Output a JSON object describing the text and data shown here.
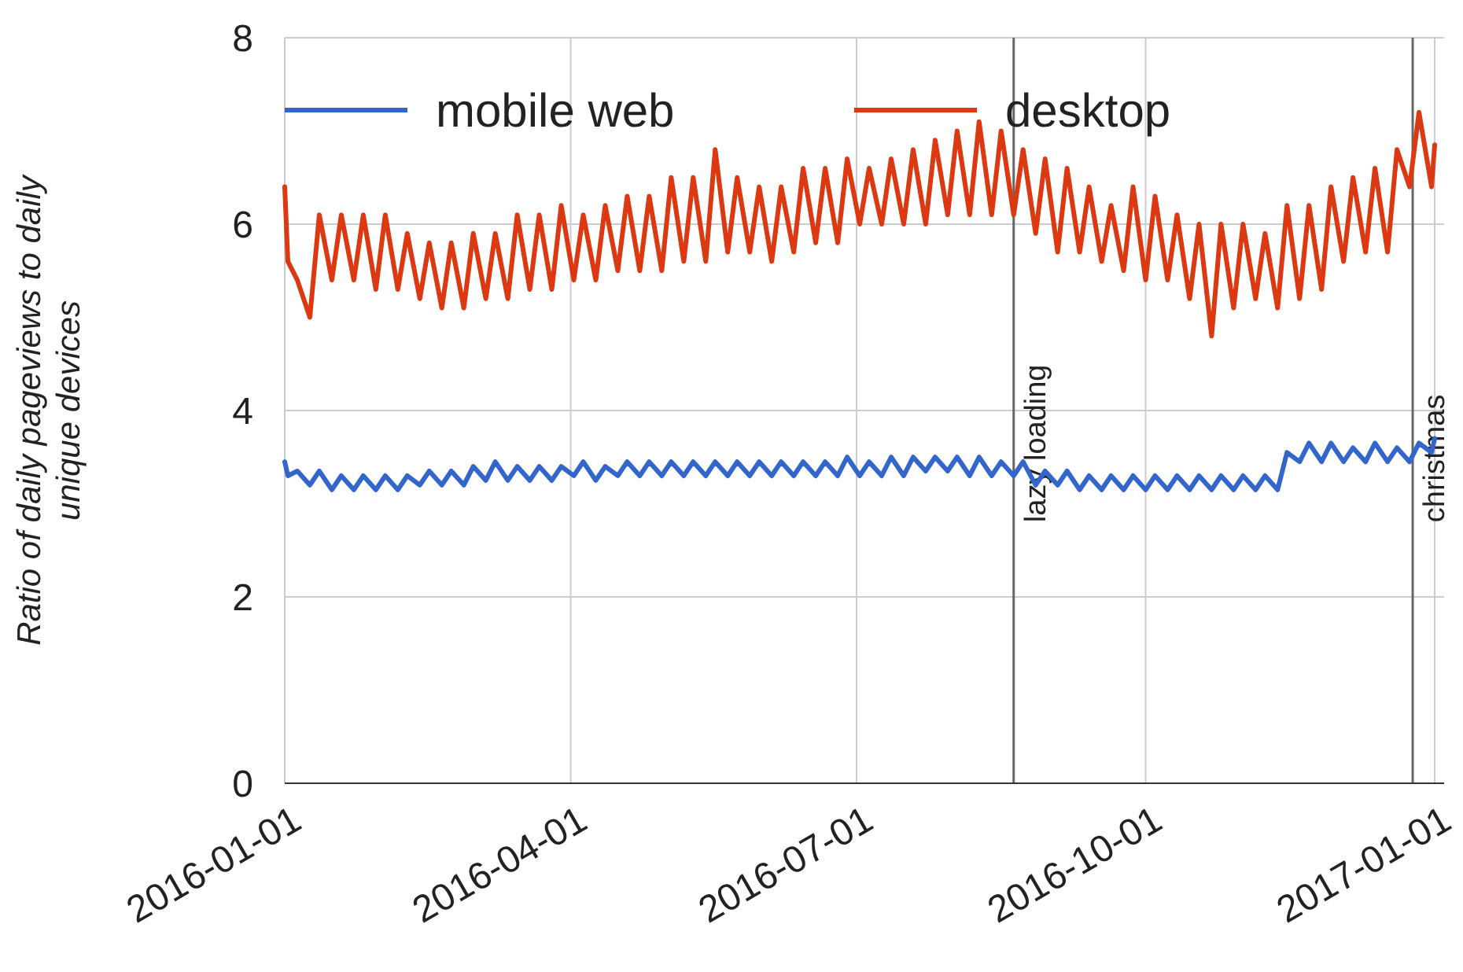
{
  "chart_data": {
    "type": "line",
    "ylabel": "Ratio of daily pageviews to daily unique devices",
    "x": [
      "2016-01-01",
      "2016-01-02",
      "2016-01-05",
      "2016-01-09",
      "2016-01-12",
      "2016-01-16",
      "2016-01-19",
      "2016-01-23",
      "2016-01-26",
      "2016-01-30",
      "2016-02-02",
      "2016-02-06",
      "2016-02-09",
      "2016-02-13",
      "2016-02-16",
      "2016-02-20",
      "2016-02-23",
      "2016-02-27",
      "2016-03-01",
      "2016-03-05",
      "2016-03-08",
      "2016-03-12",
      "2016-03-15",
      "2016-03-19",
      "2016-03-22",
      "2016-03-26",
      "2016-03-29",
      "2016-04-02",
      "2016-04-05",
      "2016-04-09",
      "2016-04-12",
      "2016-04-16",
      "2016-04-19",
      "2016-04-23",
      "2016-04-26",
      "2016-04-30",
      "2016-05-03",
      "2016-05-07",
      "2016-05-10",
      "2016-05-14",
      "2016-05-17",
      "2016-05-21",
      "2016-05-24",
      "2016-05-28",
      "2016-05-31",
      "2016-06-04",
      "2016-06-07",
      "2016-06-11",
      "2016-06-14",
      "2016-06-18",
      "2016-06-21",
      "2016-06-25",
      "2016-06-28",
      "2016-07-02",
      "2016-07-05",
      "2016-07-09",
      "2016-07-12",
      "2016-07-16",
      "2016-07-19",
      "2016-07-23",
      "2016-07-26",
      "2016-07-30",
      "2016-08-02",
      "2016-08-06",
      "2016-08-09",
      "2016-08-13",
      "2016-08-16",
      "2016-08-20",
      "2016-08-23",
      "2016-08-27",
      "2016-08-30",
      "2016-09-03",
      "2016-09-06",
      "2016-09-10",
      "2016-09-13",
      "2016-09-17",
      "2016-09-20",
      "2016-09-24",
      "2016-09-27",
      "2016-10-01",
      "2016-10-04",
      "2016-10-08",
      "2016-10-11",
      "2016-10-15",
      "2016-10-18",
      "2016-10-22",
      "2016-10-25",
      "2016-10-29",
      "2016-11-01",
      "2016-11-05",
      "2016-11-08",
      "2016-11-12",
      "2016-11-15",
      "2016-11-19",
      "2016-11-22",
      "2016-11-26",
      "2016-11-29",
      "2016-12-03",
      "2016-12-06",
      "2016-12-10",
      "2016-12-13",
      "2016-12-17",
      "2016-12-20",
      "2016-12-24",
      "2016-12-27",
      "2016-12-31",
      "2017-01-01"
    ],
    "series": [
      {
        "name": "mobile web",
        "color": "#3366cc",
        "values": [
          3.45,
          3.3,
          3.35,
          3.2,
          3.35,
          3.15,
          3.3,
          3.15,
          3.3,
          3.15,
          3.3,
          3.15,
          3.3,
          3.2,
          3.35,
          3.2,
          3.35,
          3.2,
          3.4,
          3.25,
          3.45,
          3.25,
          3.4,
          3.25,
          3.4,
          3.25,
          3.4,
          3.3,
          3.45,
          3.25,
          3.4,
          3.3,
          3.45,
          3.3,
          3.45,
          3.3,
          3.45,
          3.3,
          3.45,
          3.3,
          3.45,
          3.3,
          3.45,
          3.3,
          3.45,
          3.3,
          3.45,
          3.3,
          3.45,
          3.3,
          3.45,
          3.3,
          3.5,
          3.3,
          3.45,
          3.3,
          3.5,
          3.3,
          3.5,
          3.35,
          3.5,
          3.35,
          3.5,
          3.3,
          3.5,
          3.3,
          3.45,
          3.3,
          3.45,
          3.2,
          3.35,
          3.2,
          3.35,
          3.15,
          3.3,
          3.15,
          3.3,
          3.15,
          3.3,
          3.15,
          3.3,
          3.15,
          3.3,
          3.15,
          3.3,
          3.15,
          3.3,
          3.15,
          3.3,
          3.15,
          3.3,
          3.15,
          3.55,
          3.45,
          3.65,
          3.45,
          3.65,
          3.45,
          3.6,
          3.45,
          3.65,
          3.45,
          3.6,
          3.45,
          3.65,
          3.55,
          3.7
        ]
      },
      {
        "name": "desktop",
        "color": "#dc3912",
        "values": [
          6.4,
          5.6,
          5.4,
          5.0,
          6.1,
          5.4,
          6.1,
          5.4,
          6.1,
          5.3,
          6.1,
          5.3,
          5.9,
          5.2,
          5.8,
          5.1,
          5.8,
          5.1,
          5.9,
          5.2,
          5.9,
          5.2,
          6.1,
          5.3,
          6.1,
          5.3,
          6.2,
          5.4,
          6.1,
          5.4,
          6.2,
          5.5,
          6.3,
          5.5,
          6.3,
          5.5,
          6.5,
          5.6,
          6.5,
          5.6,
          6.8,
          5.7,
          6.5,
          5.7,
          6.4,
          5.6,
          6.4,
          5.7,
          6.6,
          5.8,
          6.6,
          5.8,
          6.7,
          6.0,
          6.6,
          6.0,
          6.7,
          6.0,
          6.8,
          6.0,
          6.9,
          6.1,
          7.0,
          6.1,
          7.1,
          6.1,
          7.0,
          6.1,
          6.8,
          5.9,
          6.7,
          5.7,
          6.6,
          5.7,
          6.4,
          5.6,
          6.2,
          5.5,
          6.4,
          5.4,
          6.3,
          5.4,
          6.1,
          5.2,
          6.0,
          4.8,
          6.0,
          5.1,
          6.0,
          5.2,
          5.9,
          5.1,
          6.2,
          5.2,
          6.2,
          5.3,
          6.4,
          5.6,
          6.5,
          5.7,
          6.6,
          5.7,
          6.8,
          6.4,
          7.2,
          6.4,
          6.85
        ]
      }
    ],
    "xlim": [
      "2016-01-01",
      "2017-01-04"
    ],
    "xticks": [
      "2016-01-01",
      "2016-04-01",
      "2016-07-01",
      "2016-10-01",
      "2017-01-01"
    ],
    "ylim": [
      0,
      8
    ],
    "yticks": [
      0,
      2,
      4,
      6,
      8
    ],
    "ref_lines": [
      {
        "axis": "x",
        "value": "2016-08-20",
        "label": "lazy loading",
        "color": "#666666"
      },
      {
        "axis": "x",
        "value": "2016-12-25",
        "label": "christmas",
        "color": "#666666"
      }
    ],
    "grid": true,
    "legend": "top",
    "line_style": "solid",
    "marker": "none"
  }
}
